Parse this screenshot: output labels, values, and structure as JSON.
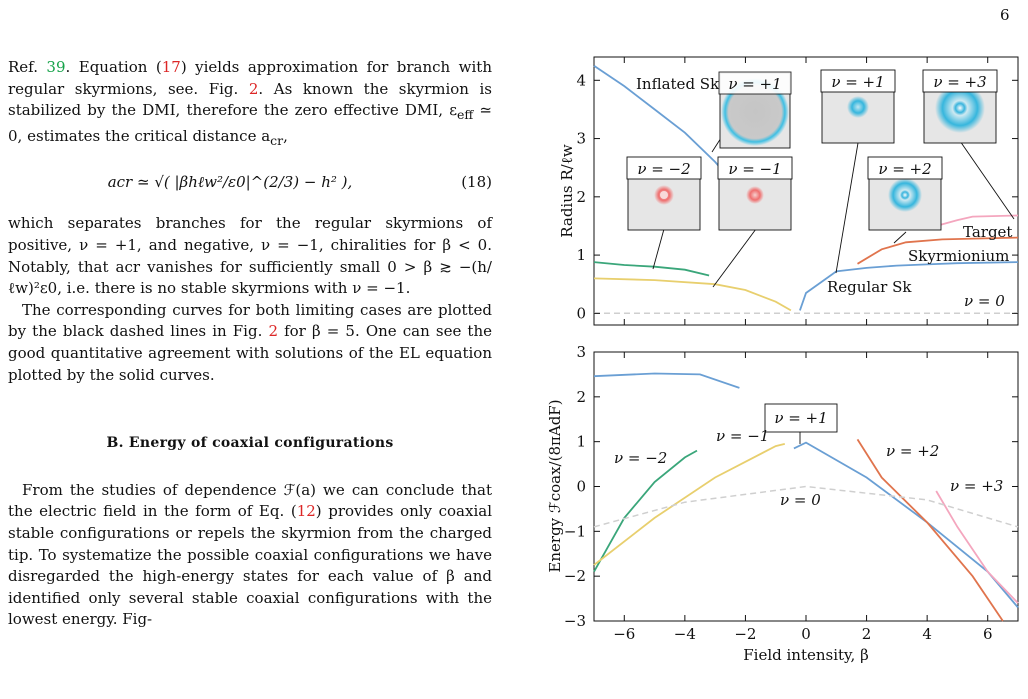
{
  "page_number": "6",
  "text": {
    "p1": [
      "Ref. ",
      "39",
      ". Equation (",
      "17",
      ") yields approximation for branch with regular skyrmions, see. Fig. ",
      "2",
      ". As known the skyrmion is stabilized by the DMI, therefore the zero effective DMI, ε",
      "eff",
      " ≃ 0, estimates the critical distance a",
      "cr",
      ","
    ],
    "eq18": {
      "lhs": "acr ≃ √( |βhℓw²/ε0|^(2/3) − h² ),",
      "number": "(18)"
    },
    "p2": "which separates branches for the regular skyrmions of positive, ν = +1, and negative, ν = −1, chiralities for β < 0. Notably, that acr vanishes for sufficiently small 0 > β ≳ −(h/ℓw)²ε0, i.e. there is no stable skyrmions with ν = −1.",
    "p3": [
      "The corresponding curves for both limiting cases are plotted by the black dashed lines in Fig. ",
      "2",
      " for β = 5. One can see the good quantitative agreement with solutions of the EL equation plotted by the solid curves."
    ],
    "section": "B.   Energy of coaxial configurations",
    "p4": [
      "From the studies of dependence ℱ(a) we can conclude that the electric field in the form of Eq. (",
      "12",
      ") provides only coaxial stable configurations or repels the skyrmion from the charged tip. To systematize the possible coaxial configurations we have disregarded the high-energy states for each value of β and identified only several stable coaxial configurations with the lowest energy. Fig-"
    ]
  },
  "colors": {
    "citation": "#16a34a",
    "reference": "#dc2626",
    "blue": "#6a9fd4",
    "green": "#3aa67a",
    "yellow": "#e8cf6e",
    "orange": "#e0744d",
    "pink": "#f4a6be",
    "gray_dashed": "#cfcfcf"
  },
  "chart_data": [
    {
      "type": "line",
      "ylabel": "Radius R/ℓw",
      "xlim": [
        -7,
        7
      ],
      "ylim": [
        -0.2,
        4.4
      ],
      "yticks": [
        0,
        1,
        2,
        3,
        4
      ],
      "annotations": [
        "Inflated Sk",
        "Target",
        "Skyrmionium",
        "Regular Sk",
        "ν = 0"
      ],
      "insets": [
        "ν = +1",
        "ν = −2",
        "ν = −1",
        "ν = +1",
        "ν = +2",
        "ν = +3"
      ],
      "series": [
        {
          "color": "blue",
          "x": [
            -7,
            -6,
            -5,
            -4,
            -3,
            -2.5,
            -2.2
          ],
          "y": [
            4.25,
            3.9,
            3.5,
            3.1,
            2.6,
            2.3,
            1.9
          ]
        },
        {
          "color": "blue",
          "x": [
            -0.2,
            0,
            1,
            2,
            3,
            4,
            5,
            7
          ],
          "y": [
            0.05,
            0.35,
            0.72,
            0.78,
            0.82,
            0.84,
            0.86,
            0.88
          ]
        },
        {
          "color": "green",
          "x": [
            -7,
            -6,
            -5,
            -4,
            -3.2
          ],
          "y": [
            0.88,
            0.83,
            0.8,
            0.75,
            0.65
          ]
        },
        {
          "color": "yellow",
          "x": [
            -7,
            -5,
            -3,
            -2,
            -1,
            -0.5
          ],
          "y": [
            0.6,
            0.57,
            0.5,
            0.4,
            0.2,
            0.05
          ]
        },
        {
          "color": "orange",
          "x": [
            1.7,
            2.5,
            3.3,
            4.5,
            7
          ],
          "y": [
            0.85,
            1.1,
            1.22,
            1.27,
            1.3
          ]
        },
        {
          "color": "pink",
          "x": [
            4.3,
            5,
            5.5,
            7
          ],
          "y": [
            1.5,
            1.6,
            1.66,
            1.68
          ]
        },
        {
          "color": "gray_dashed",
          "x": [
            -7,
            7
          ],
          "y": [
            0,
            0
          ]
        }
      ]
    },
    {
      "type": "line",
      "xlabel": "Field intensity, β",
      "ylabel": "Energy ℱcoax/(8πAdF)",
      "xlim": [
        -7,
        7
      ],
      "ylim": [
        -3,
        3
      ],
      "xticks": [
        -6,
        -4,
        -2,
        0,
        2,
        4,
        6
      ],
      "yticks": [
        -3,
        -2,
        -1,
        0,
        1,
        2,
        3
      ],
      "labels": [
        "ν = +1",
        "ν = −2",
        "ν = −1",
        "ν = +2",
        "ν = +3",
        "ν = 0"
      ],
      "series": [
        {
          "color": "blue",
          "x": [
            -7,
            -5,
            -3.5,
            -2.2
          ],
          "y": [
            2.46,
            2.52,
            2.5,
            2.2
          ]
        },
        {
          "color": "blue",
          "x": [
            -0.4,
            0,
            2,
            4,
            6,
            7
          ],
          "y": [
            0.85,
            0.98,
            0.2,
            -0.8,
            -1.9,
            -2.7
          ]
        },
        {
          "color": "green",
          "x": [
            -7,
            -6,
            -5,
            -4,
            -3.6
          ],
          "y": [
            -1.9,
            -0.7,
            0.1,
            0.65,
            0.8
          ]
        },
        {
          "color": "yellow",
          "x": [
            -7,
            -5,
            -3,
            -1,
            -0.7
          ],
          "y": [
            -1.75,
            -0.7,
            0.2,
            0.9,
            0.95
          ]
        },
        {
          "color": "orange",
          "x": [
            1.7,
            2.5,
            4,
            5.5,
            6.5
          ],
          "y": [
            1.05,
            0.2,
            -0.8,
            -2.0,
            -3.0
          ]
        },
        {
          "color": "pink",
          "x": [
            4.3,
            5,
            6,
            7
          ],
          "y": [
            -0.1,
            -0.9,
            -1.9,
            -2.6
          ]
        },
        {
          "color": "gray_dashed",
          "x": [
            -7,
            -4,
            0,
            4,
            7
          ],
          "y": [
            -0.9,
            -0.35,
            0,
            -0.3,
            -0.9
          ]
        }
      ]
    }
  ]
}
